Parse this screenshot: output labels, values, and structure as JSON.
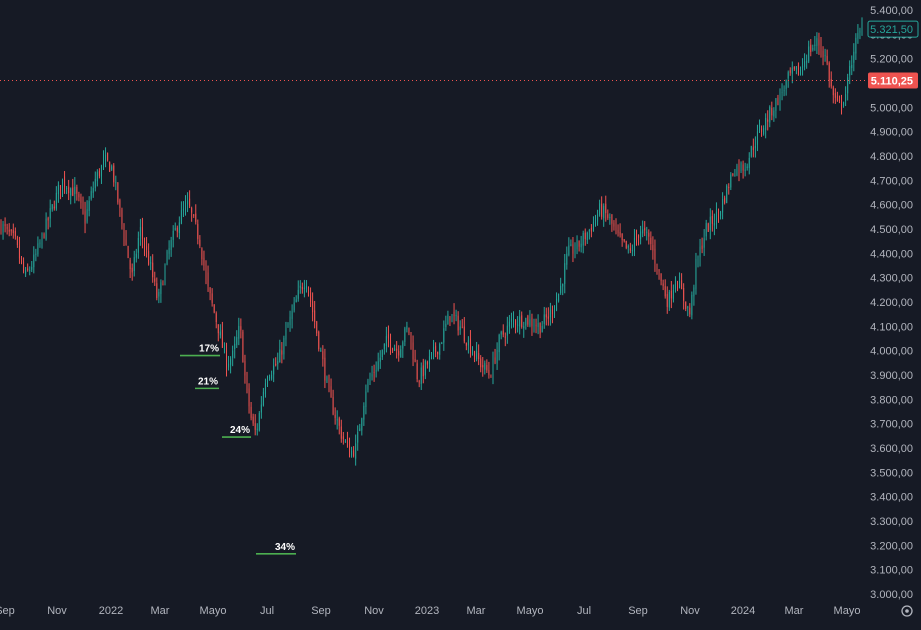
{
  "colors": {
    "background": "#161a25",
    "up": "#26a69a",
    "down": "#ef5350",
    "axis_text": "#b2b5be",
    "annotation_line": "#4caf50",
    "last_price_badge": "#ef5350",
    "current_price_badge_border": "#26a69a",
    "dotted_line": "#ef5350"
  },
  "price_axis": {
    "last_price_label": "5.110,25",
    "current_price_label": "5.321,50"
  },
  "annotations": [
    {
      "label": "17%",
      "price": 3980
    },
    {
      "label": "21%",
      "price": 3845
    },
    {
      "label": "24%",
      "price": 3645
    },
    {
      "label": "34%",
      "price": 3165
    }
  ],
  "settings": {
    "icon": "gear-icon"
  },
  "chart_data": {
    "type": "candlestick",
    "title": "",
    "xlabel": "",
    "ylabel": "",
    "ylim": [
      2980,
      5420
    ],
    "grid": false,
    "y_ticks": [
      "5.400,00",
      "5.300,00",
      "5.200,00",
      "5.100,00",
      "5.000,00",
      "4.900,00",
      "4.800,00",
      "4.700,00",
      "4.600,00",
      "4.500,00",
      "4.400,00",
      "4.300,00",
      "4.200,00",
      "4.100,00",
      "4.000,00",
      "3.900,00",
      "3.800,00",
      "3.700,00",
      "3.600,00",
      "3.500,00",
      "3.400,00",
      "3.300,00",
      "3.200,00",
      "3.100,00",
      "3.000,00"
    ],
    "x_ticks": [
      "Sep",
      "Nov",
      "2022",
      "Mar",
      "Mayo",
      "Jul",
      "Sep",
      "Nov",
      "2023",
      "Mar",
      "Mayo",
      "Jul",
      "Sep",
      "Nov",
      "2024",
      "Mar",
      "Mayo"
    ],
    "series": [
      {
        "close": [
          [
            0,
            4520
          ],
          [
            15,
            4450
          ],
          [
            25,
            4300
          ],
          [
            35,
            4380
          ],
          [
            50,
            4560
          ],
          [
            62,
            4700
          ],
          [
            75,
            4650
          ],
          [
            85,
            4540
          ],
          [
            95,
            4700
          ],
          [
            105,
            4780
          ],
          [
            112,
            4750
          ],
          [
            122,
            4520
          ],
          [
            132,
            4300
          ],
          [
            140,
            4500
          ],
          [
            150,
            4350
          ],
          [
            158,
            4200
          ],
          [
            168,
            4400
          ],
          [
            180,
            4550
          ],
          [
            188,
            4600
          ],
          [
            200,
            4450
          ],
          [
            208,
            4250
          ],
          [
            218,
            4100
          ],
          [
            226,
            3950
          ],
          [
            233,
            3980
          ],
          [
            240,
            4100
          ],
          [
            246,
            3850
          ],
          [
            252,
            3700
          ],
          [
            256,
            3660
          ],
          [
            266,
            3900
          ],
          [
            278,
            3950
          ],
          [
            288,
            4100
          ],
          [
            300,
            4250
          ],
          [
            306,
            4300
          ],
          [
            318,
            4050
          ],
          [
            330,
            3800
          ],
          [
            342,
            3650
          ],
          [
            350,
            3580
          ],
          [
            356,
            3600
          ],
          [
            366,
            3850
          ],
          [
            378,
            3950
          ],
          [
            388,
            4050
          ],
          [
            398,
            4000
          ],
          [
            408,
            4100
          ],
          [
            418,
            3880
          ],
          [
            428,
            3950
          ],
          [
            440,
            4030
          ],
          [
            450,
            4150
          ],
          [
            460,
            4100
          ],
          [
            470,
            4020
          ],
          [
            480,
            3950
          ],
          [
            490,
            3900
          ],
          [
            500,
            4050
          ],
          [
            512,
            4120
          ],
          [
            525,
            4130
          ],
          [
            540,
            4100
          ],
          [
            550,
            4150
          ],
          [
            560,
            4250
          ],
          [
            568,
            4400
          ],
          [
            578,
            4430
          ],
          [
            590,
            4500
          ],
          [
            600,
            4580
          ],
          [
            608,
            4550
          ],
          [
            620,
            4450
          ],
          [
            630,
            4400
          ],
          [
            640,
            4500
          ],
          [
            650,
            4450
          ],
          [
            660,
            4300
          ],
          [
            668,
            4200
          ],
          [
            676,
            4300
          ],
          [
            685,
            4200
          ],
          [
            690,
            4150
          ],
          [
            696,
            4350
          ],
          [
            706,
            4500
          ],
          [
            718,
            4560
          ],
          [
            726,
            4650
          ],
          [
            734,
            4750
          ],
          [
            745,
            4760
          ],
          [
            756,
            4870
          ],
          [
            768,
            4960
          ],
          [
            780,
            5050
          ],
          [
            790,
            5130
          ],
          [
            800,
            5150
          ],
          [
            808,
            5230
          ],
          [
            818,
            5270
          ],
          [
            826,
            5200
          ],
          [
            832,
            5060
          ],
          [
            838,
            5000
          ],
          [
            846,
            5060
          ],
          [
            854,
            5250
          ],
          [
            862,
            5321
          ]
        ]
      }
    ]
  }
}
